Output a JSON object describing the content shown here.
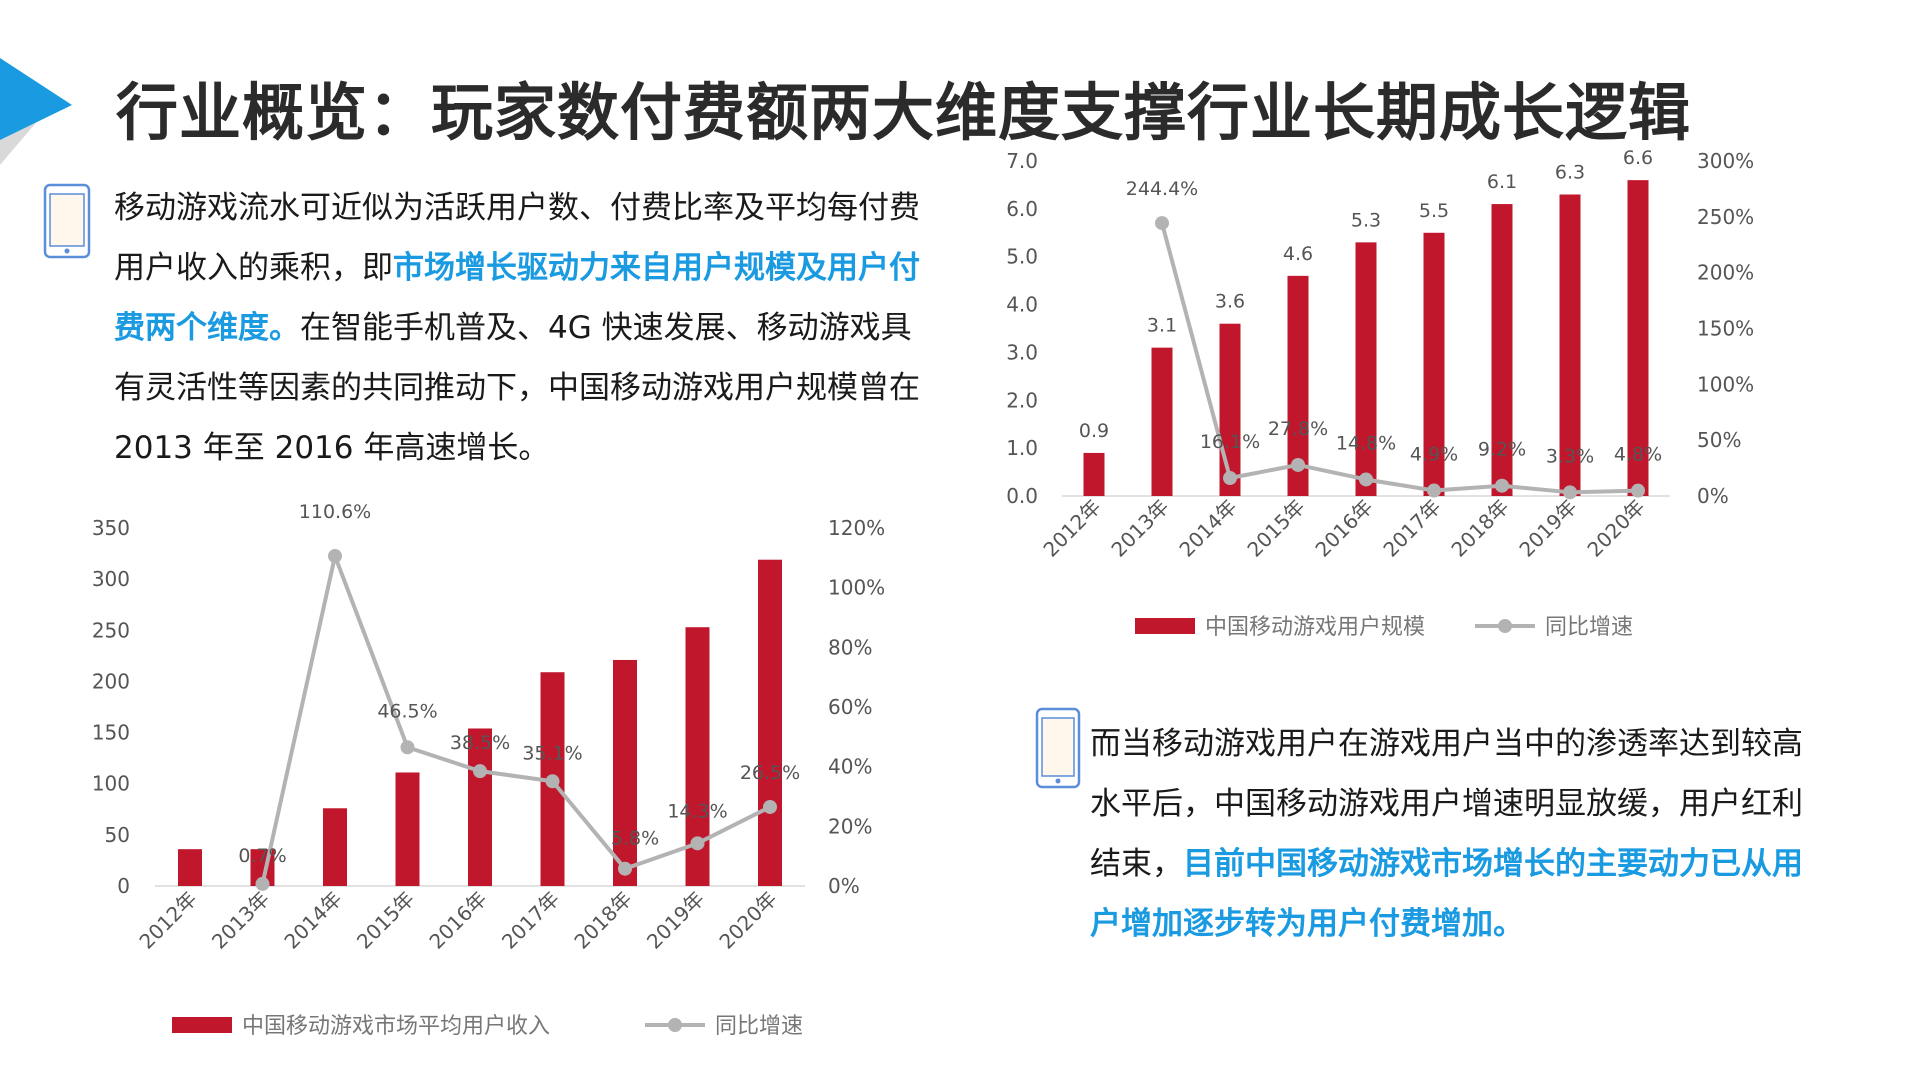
{
  "title": "行业概览：玩家数付费额两大维度支撑行业长期成长逻辑",
  "colors": {
    "bar": "#c0172d",
    "line": "#b3b3b3",
    "accent": "#1a9ae0",
    "icon": "#5b8dd9"
  },
  "para1": {
    "t1": "移动游戏流水可近似为活跃用户数、付费比率及平均每付费用户收入的乘积，即",
    "hl": "市场增长驱动力来自用户规模及用户付费两个维度。",
    "t2": "在智能手机普及、4G 快速发展、移动游戏具有灵活性等因素的共同推动下，中国移动游戏用户规模曾在 2013 年至 2016 年高速增长。"
  },
  "para2": {
    "t1": "而当移动游戏用户在游戏用户当中的渗透率达到较高水平后，中国移动游戏用户增速明显放缓，用户红利结束，",
    "hl": "目前中国移动游戏市场增长的主要动力已从用户增加逐步转为用户付费增加。"
  },
  "chart_data": [
    {
      "type": "bar",
      "categories": [
        "2012年",
        "2013年",
        "2014年",
        "2015年",
        "2016年",
        "2017年",
        "2018年",
        "2019年",
        "2020年"
      ],
      "series": [
        {
          "name": "中国移动游戏市场平均用户收入",
          "type": "bar",
          "axis": "left",
          "values": [
            36,
            36,
            76,
            111,
            154,
            209,
            221,
            253,
            319
          ]
        },
        {
          "name": "同比增速",
          "type": "line",
          "axis": "right",
          "values": [
            null,
            0.7,
            110.6,
            46.5,
            38.5,
            35.1,
            5.8,
            14.3,
            26.5
          ],
          "labels": [
            "",
            "0.7%",
            "110.6%",
            "46.5%",
            "38.5%",
            "35.1%",
            "5.8%",
            "14.3%",
            "26.5%"
          ]
        }
      ],
      "ylim_left": [
        0,
        350
      ],
      "yticks_left": [
        "0",
        "50",
        "100",
        "150",
        "200",
        "250",
        "300",
        "350"
      ],
      "ylim_right": [
        0,
        120
      ],
      "yticks_right": [
        "0%",
        "20%",
        "40%",
        "60%",
        "80%",
        "100%",
        "120%"
      ],
      "legend": "bottom"
    },
    {
      "type": "bar",
      "categories": [
        "2012年",
        "2013年",
        "2014年",
        "2015年",
        "2016年",
        "2017年",
        "2018年",
        "2019年",
        "2020年"
      ],
      "series": [
        {
          "name": "中国移动游戏用户规模",
          "type": "bar",
          "axis": "left",
          "values": [
            0.9,
            3.1,
            3.6,
            4.6,
            5.3,
            5.5,
            6.1,
            6.3,
            6.6
          ],
          "labels": [
            "0.9",
            "3.1",
            "3.6",
            "4.6",
            "5.3",
            "5.5",
            "6.1",
            "6.3",
            "6.6"
          ]
        },
        {
          "name": "同比增速",
          "type": "line",
          "axis": "right",
          "values": [
            null,
            244.4,
            16.1,
            27.8,
            14.8,
            4.9,
            9.2,
            3.3,
            4.8
          ],
          "labels": [
            "",
            "244.4%",
            "16.1%",
            "27.8%",
            "14.8%",
            "4.9%",
            "9.2%",
            "3.3%",
            "4.8%"
          ]
        }
      ],
      "ylim_left": [
        0,
        7
      ],
      "yticks_left": [
        "0.0",
        "1.0",
        "2.0",
        "3.0",
        "4.0",
        "5.0",
        "6.0",
        "7.0"
      ],
      "ylim_right": [
        0,
        300
      ],
      "yticks_right": [
        "0%",
        "50%",
        "100%",
        "150%",
        "200%",
        "250%",
        "300%"
      ],
      "legend": "bottom"
    }
  ]
}
